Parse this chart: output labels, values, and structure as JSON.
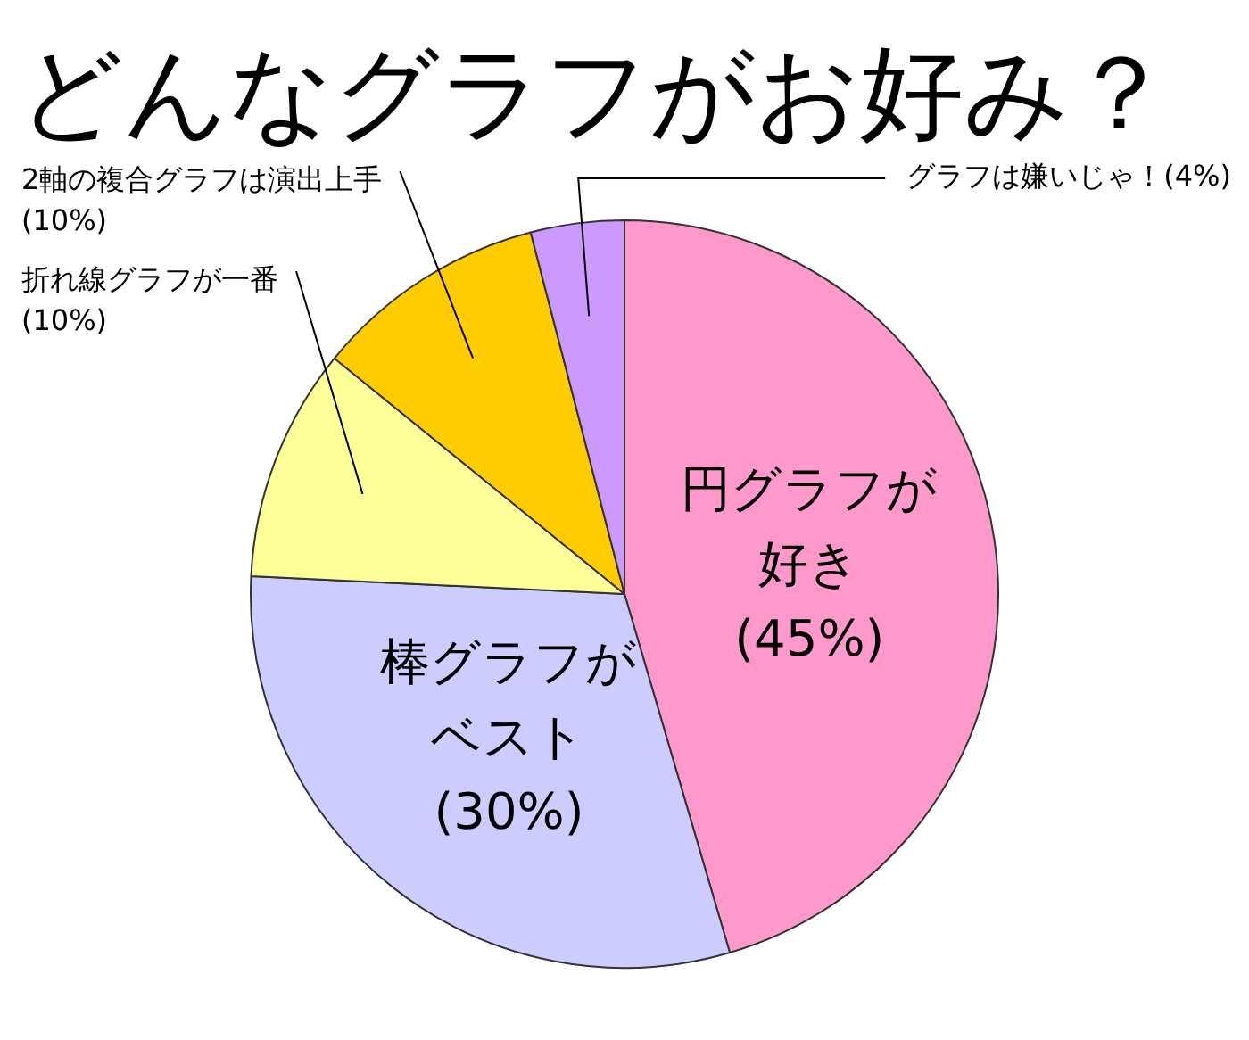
{
  "chart_data": {
    "type": "pie",
    "title": "どんなグラフがお好み？",
    "categories": [
      "円グラフが好き",
      "棒グラフがベスト",
      "折れ線グラフが一番",
      "2軸の複合グラフは演出上手",
      "グラフは嫌いじゃ！"
    ],
    "values": [
      45,
      30,
      10,
      10,
      4
    ],
    "colors": [
      "#ff99cc",
      "#ccccff",
      "#ffff99",
      "#ffcc00",
      "#cc99ff"
    ],
    "value_labels": [
      "(45%)",
      "(30%)",
      "(10%)",
      "(10%)",
      "(4%)"
    ],
    "legend": false
  }
}
